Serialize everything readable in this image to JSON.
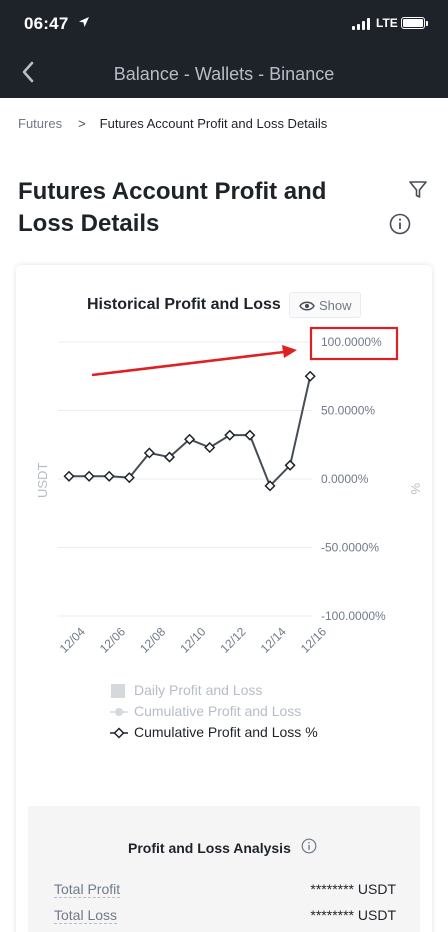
{
  "status": {
    "time": "06:47",
    "network": "LTE"
  },
  "nav": {
    "title": "Balance - Wallets - Binance"
  },
  "breadcrumb": {
    "parent": "Futures",
    "separator": ">",
    "current": "Futures Account Profit and Loss Details"
  },
  "page": {
    "title": "Futures Account Profit and Loss Details"
  },
  "chart_card": {
    "title": "Historical Profit and Loss",
    "show_label": "Show"
  },
  "chart_data": {
    "type": "line",
    "ylabel_left": "USDT",
    "ylabel_right": "%",
    "yticks": [
      "100.0000%",
      "50.0000%",
      "0.0000%",
      "-50.0000%",
      "-100.0000%"
    ],
    "ylim": [
      -100,
      100
    ],
    "grid": true,
    "x_tick_labels": [
      "12/04",
      "12/06",
      "12/08",
      "12/10",
      "12/12",
      "12/14",
      "12/16"
    ],
    "series": [
      {
        "name": "Cumulative Profit and Loss %",
        "x": [
          "12/03",
          "12/04",
          "12/05",
          "12/06",
          "12/07",
          "12/08",
          "12/09",
          "12/10",
          "12/11",
          "12/12",
          "12/13",
          "12/14",
          "12/15",
          "12/16"
        ],
        "values": [
          2,
          2,
          2,
          1,
          19,
          16,
          29,
          23,
          32,
          32,
          -5,
          10,
          75,
          null
        ]
      }
    ],
    "highlight": {
      "target": "100.0000%",
      "color": "#e02020"
    }
  },
  "legend": {
    "items": [
      {
        "label": "Daily Profit and Loss",
        "active": false
      },
      {
        "label": "Cumulative Profit and Loss",
        "active": false
      },
      {
        "label": "Cumulative Profit and Loss %",
        "active": true
      }
    ]
  },
  "analysis": {
    "title": "Profit and Loss Analysis",
    "rows": [
      {
        "label": "Total Profit",
        "value": "******** USDT"
      },
      {
        "label": "Total Loss",
        "value": "******** USDT"
      }
    ]
  },
  "colors": {
    "dark_bg": "#1e2329",
    "annotation_red": "#e02020"
  }
}
